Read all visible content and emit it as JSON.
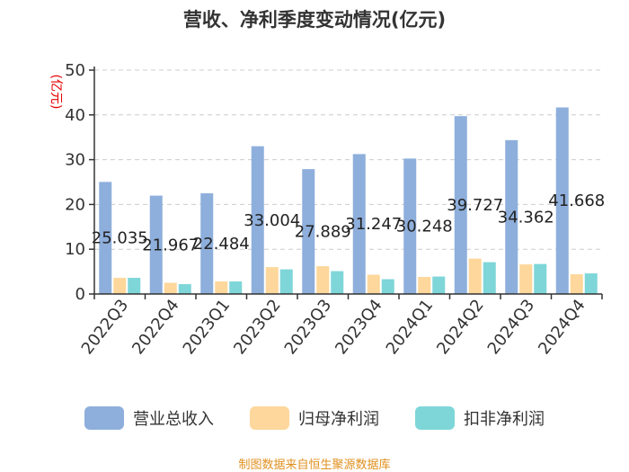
{
  "chart_data": {
    "type": "bar",
    "title": "营收、净利季度变动情况(亿元)",
    "ylabel": "(亿元)",
    "xlabel": "",
    "ylim": [
      0,
      50
    ],
    "yticks": [
      0,
      10,
      20,
      30,
      40,
      50
    ],
    "grid": true,
    "legend_position": "bottom",
    "categories": [
      "2022Q3",
      "2022Q4",
      "2023Q1",
      "2023Q2",
      "2023Q3",
      "2023Q4",
      "2024Q1",
      "2024Q2",
      "2024Q3",
      "2024Q4"
    ],
    "series": [
      {
        "name": "营业总收入",
        "color": "#8EAFDC",
        "values": [
          25.035,
          21.967,
          22.484,
          33.004,
          27.889,
          31.247,
          30.248,
          39.727,
          34.362,
          41.668
        ],
        "labels": [
          "25.035",
          "21.967",
          "22.484",
          "33.004",
          "27.889",
          "31.247",
          "30.248",
          "39.727",
          "34.362",
          "41.668"
        ]
      },
      {
        "name": "归母净利润",
        "color": "#FDD79B",
        "values": [
          3.6,
          2.5,
          2.8,
          6.0,
          6.2,
          4.3,
          3.8,
          7.9,
          6.6,
          4.4
        ]
      },
      {
        "name": "扣非净利润",
        "color": "#7ED6D8",
        "values": [
          3.6,
          2.2,
          2.8,
          5.5,
          5.1,
          3.3,
          3.9,
          7.1,
          6.7,
          4.6
        ]
      }
    ]
  },
  "source": "制图数据来自恒生聚源数据库",
  "colors": {
    "ylabel": "#E60000",
    "source": "#E09020"
  }
}
